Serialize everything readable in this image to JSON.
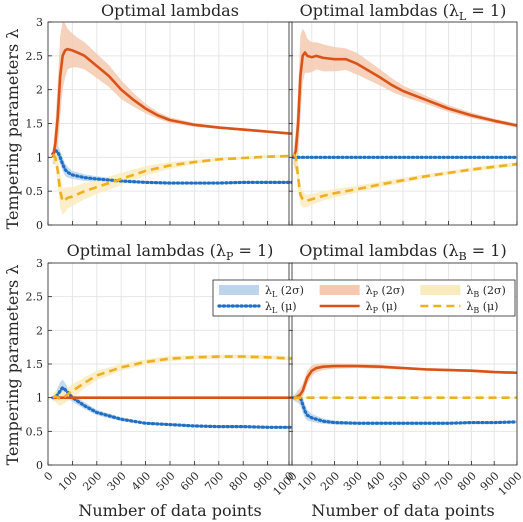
{
  "figure": {
    "xlabel_bottom": "Number of data points",
    "ylabel": "Tempering parameters λ"
  },
  "colors": {
    "L": "#1f6fc4",
    "P": "#d95319",
    "B": "#edb120",
    "L_band": "#bcd5ec",
    "P_band": "#f5c9b0",
    "B_band": "#faebbf",
    "grid": "#e6e6e6",
    "axis": "#262626"
  },
  "legend": {
    "items": [
      {
        "key": "L",
        "kind": "band",
        "label_main": "λ",
        "label_sub": "L",
        "label_rest": " (2σ)"
      },
      {
        "key": "P",
        "kind": "band",
        "label_main": "λ",
        "label_sub": "P",
        "label_rest": " (2σ)"
      },
      {
        "key": "B",
        "kind": "band",
        "label_main": "λ",
        "label_sub": "B",
        "label_rest": " (2σ)"
      },
      {
        "key": "L",
        "kind": "dotted",
        "label_main": "λ",
        "label_sub": "L",
        "label_rest": " (μ)"
      },
      {
        "key": "P",
        "kind": "solid",
        "label_main": "λ",
        "label_sub": "P",
        "label_rest": " (μ)"
      },
      {
        "key": "B",
        "kind": "dashed",
        "label_main": "λ",
        "label_sub": "B",
        "label_rest": " (μ)"
      }
    ]
  },
  "chart_data": [
    {
      "type": "line",
      "title": "Optimal lambdas",
      "xlim": [
        0,
        1000
      ],
      "ylim": [
        0,
        3
      ],
      "xticks": [
        0,
        100,
        200,
        300,
        400,
        500,
        600,
        700,
        800,
        900,
        1000
      ],
      "yticks": [
        0,
        0.5,
        1,
        1.5,
        2,
        2.5,
        3
      ],
      "grid": true,
      "series": [
        {
          "name": "λL (μ)",
          "key": "L",
          "style": "dotted",
          "x": [
            20,
            30,
            40,
            50,
            60,
            70,
            80,
            100,
            150,
            200,
            300,
            400,
            500,
            600,
            700,
            800,
            900,
            1000
          ],
          "y": [
            1.05,
            1.1,
            1.08,
            1.0,
            0.9,
            0.82,
            0.78,
            0.74,
            0.7,
            0.68,
            0.65,
            0.63,
            0.62,
            0.62,
            0.62,
            0.63,
            0.63,
            0.63
          ],
          "band": [
            0.06,
            0.08,
            0.1,
            0.1,
            0.1,
            0.09,
            0.08,
            0.06,
            0.05,
            0.04,
            0.03,
            0.02,
            0.02,
            0.02,
            0.02,
            0.02,
            0.02,
            0.02
          ]
        },
        {
          "name": "λP (μ)",
          "key": "P",
          "style": "solid",
          "x": [
            20,
            30,
            40,
            50,
            60,
            70,
            80,
            100,
            120,
            150,
            200,
            250,
            300,
            350,
            400,
            450,
            500,
            600,
            700,
            800,
            900,
            1000
          ],
          "y": [
            1.0,
            1.2,
            1.6,
            2.2,
            2.5,
            2.58,
            2.6,
            2.58,
            2.55,
            2.5,
            2.35,
            2.2,
            2.0,
            1.85,
            1.72,
            1.62,
            1.55,
            1.48,
            1.44,
            1.41,
            1.38,
            1.35
          ],
          "band": [
            0.1,
            0.3,
            0.5,
            0.6,
            0.5,
            0.4,
            0.3,
            0.25,
            0.22,
            0.2,
            0.18,
            0.16,
            0.14,
            0.1,
            0.07,
            0.05,
            0.04,
            0.03,
            0.02,
            0.02,
            0.02,
            0.02
          ]
        },
        {
          "name": "λB (μ)",
          "key": "B",
          "style": "dashed",
          "x": [
            20,
            30,
            40,
            50,
            60,
            70,
            80,
            100,
            150,
            200,
            300,
            400,
            500,
            600,
            700,
            800,
            900,
            1000
          ],
          "y": [
            1.05,
            1.0,
            0.8,
            0.5,
            0.35,
            0.37,
            0.4,
            0.42,
            0.5,
            0.56,
            0.68,
            0.8,
            0.88,
            0.93,
            0.97,
            0.99,
            1.01,
            1.02
          ],
          "band": [
            0.05,
            0.1,
            0.2,
            0.25,
            0.2,
            0.18,
            0.16,
            0.14,
            0.12,
            0.1,
            0.09,
            0.07,
            0.05,
            0.03,
            0.02,
            0.02,
            0.02,
            0.02
          ]
        }
      ]
    },
    {
      "type": "line",
      "title_main": "Optimal lambdas (λ",
      "title_sub": "L",
      "title_rest": " = 1)",
      "xlim": [
        0,
        1000
      ],
      "ylim": [
        0,
        3
      ],
      "xticks": [
        0,
        100,
        200,
        300,
        400,
        500,
        600,
        700,
        800,
        900,
        1000
      ],
      "yticks": [
        0,
        0.5,
        1,
        1.5,
        2,
        2.5,
        3
      ],
      "grid": true,
      "series": [
        {
          "name": "λL (μ)",
          "key": "L",
          "style": "dotted",
          "x": [
            20,
            1000
          ],
          "y": [
            1.0,
            1.0
          ],
          "band": [
            0,
            0
          ]
        },
        {
          "name": "λP (μ)",
          "key": "P",
          "style": "solid",
          "x": [
            20,
            30,
            40,
            50,
            60,
            70,
            80,
            100,
            120,
            150,
            200,
            250,
            300,
            350,
            400,
            450,
            500,
            600,
            700,
            800,
            900,
            1000
          ],
          "y": [
            1.0,
            1.1,
            1.5,
            2.2,
            2.5,
            2.55,
            2.5,
            2.48,
            2.5,
            2.47,
            2.45,
            2.45,
            2.38,
            2.28,
            2.18,
            2.07,
            1.98,
            1.85,
            1.72,
            1.62,
            1.54,
            1.47
          ],
          "band": [
            0.1,
            0.3,
            0.5,
            0.6,
            0.4,
            0.3,
            0.25,
            0.22,
            0.2,
            0.2,
            0.18,
            0.16,
            0.16,
            0.14,
            0.12,
            0.1,
            0.08,
            0.06,
            0.05,
            0.04,
            0.03,
            0.03
          ]
        },
        {
          "name": "λB (μ)",
          "key": "B",
          "style": "dashed",
          "x": [
            20,
            30,
            40,
            50,
            60,
            70,
            80,
            100,
            150,
            200,
            300,
            400,
            500,
            600,
            700,
            800,
            900,
            1000
          ],
          "y": [
            1.05,
            1.0,
            0.7,
            0.45,
            0.38,
            0.36,
            0.36,
            0.38,
            0.43,
            0.47,
            0.53,
            0.6,
            0.66,
            0.72,
            0.77,
            0.82,
            0.86,
            0.9
          ],
          "band": [
            0.05,
            0.1,
            0.2,
            0.15,
            0.12,
            0.1,
            0.09,
            0.08,
            0.07,
            0.06,
            0.05,
            0.04,
            0.04,
            0.03,
            0.03,
            0.03,
            0.03,
            0.03
          ]
        }
      ]
    },
    {
      "type": "line",
      "title_main": "Optimal lambdas (λ",
      "title_sub": "P",
      "title_rest": " = 1)",
      "xlim": [
        0,
        1000
      ],
      "ylim": [
        0,
        3
      ],
      "xticks": [
        0,
        100,
        200,
        300,
        400,
        500,
        600,
        700,
        800,
        900,
        1000
      ],
      "yticks": [
        0,
        0.5,
        1,
        1.5,
        2,
        2.5,
        3
      ],
      "grid": true,
      "series": [
        {
          "name": "λL (μ)",
          "key": "L",
          "style": "dotted",
          "x": [
            20,
            30,
            40,
            50,
            60,
            70,
            80,
            100,
            150,
            200,
            300,
            400,
            500,
            600,
            700,
            800,
            900,
            1000
          ],
          "y": [
            1.0,
            1.0,
            1.05,
            1.1,
            1.15,
            1.12,
            1.08,
            1.0,
            0.88,
            0.78,
            0.68,
            0.62,
            0.6,
            0.58,
            0.57,
            0.57,
            0.56,
            0.56
          ],
          "band": [
            0.04,
            0.06,
            0.1,
            0.13,
            0.12,
            0.1,
            0.08,
            0.06,
            0.05,
            0.04,
            0.03,
            0.02,
            0.02,
            0.02,
            0.02,
            0.02,
            0.02,
            0.02
          ]
        },
        {
          "name": "λP (μ)",
          "key": "P",
          "style": "solid",
          "x": [
            20,
            1000
          ],
          "y": [
            1.0,
            1.0
          ],
          "band": [
            0,
            0
          ]
        },
        {
          "name": "λB (μ)",
          "key": "B",
          "style": "dashed",
          "x": [
            20,
            30,
            40,
            50,
            60,
            70,
            80,
            100,
            150,
            200,
            300,
            400,
            500,
            600,
            700,
            800,
            900,
            1000
          ],
          "y": [
            1.0,
            1.02,
            1.0,
            0.98,
            1.0,
            1.02,
            1.05,
            1.1,
            1.22,
            1.33,
            1.45,
            1.53,
            1.58,
            1.6,
            1.61,
            1.61,
            1.6,
            1.58
          ],
          "band": [
            0.05,
            0.08,
            0.1,
            0.1,
            0.1,
            0.1,
            0.1,
            0.1,
            0.08,
            0.07,
            0.05,
            0.04,
            0.04,
            0.03,
            0.03,
            0.03,
            0.03,
            0.03
          ]
        }
      ]
    },
    {
      "type": "line",
      "title_main": "Optimal lambdas (λ",
      "title_sub": "B",
      "title_rest": " = 1)",
      "xlim": [
        0,
        1000
      ],
      "ylim": [
        0,
        3
      ],
      "xticks": [
        0,
        100,
        200,
        300,
        400,
        500,
        600,
        700,
        800,
        900,
        1000
      ],
      "yticks": [
        0,
        0.5,
        1,
        1.5,
        2,
        2.5,
        3
      ],
      "grid": true,
      "series": [
        {
          "name": "λL (μ)",
          "key": "L",
          "style": "dotted",
          "x": [
            20,
            30,
            40,
            50,
            60,
            70,
            80,
            100,
            150,
            200,
            300,
            400,
            500,
            600,
            700,
            800,
            900,
            1000
          ],
          "y": [
            1.0,
            1.0,
            1.02,
            1.0,
            0.9,
            0.8,
            0.74,
            0.7,
            0.65,
            0.63,
            0.62,
            0.62,
            0.62,
            0.62,
            0.62,
            0.63,
            0.63,
            0.64
          ],
          "band": [
            0.04,
            0.06,
            0.1,
            0.12,
            0.12,
            0.1,
            0.08,
            0.06,
            0.04,
            0.03,
            0.02,
            0.02,
            0.02,
            0.02,
            0.02,
            0.02,
            0.02,
            0.02
          ]
        },
        {
          "name": "λP (μ)",
          "key": "P",
          "style": "solid",
          "x": [
            20,
            30,
            40,
            50,
            60,
            70,
            80,
            100,
            120,
            150,
            200,
            300,
            400,
            500,
            600,
            700,
            800,
            900,
            1000
          ],
          "y": [
            1.0,
            1.0,
            1.02,
            1.05,
            1.1,
            1.2,
            1.3,
            1.4,
            1.44,
            1.46,
            1.47,
            1.47,
            1.46,
            1.44,
            1.42,
            1.41,
            1.4,
            1.38,
            1.37
          ],
          "band": [
            0.03,
            0.05,
            0.08,
            0.1,
            0.1,
            0.1,
            0.1,
            0.08,
            0.06,
            0.05,
            0.04,
            0.03,
            0.03,
            0.02,
            0.02,
            0.02,
            0.02,
            0.02,
            0.02
          ]
        },
        {
          "name": "λB (μ)",
          "key": "B",
          "style": "dashed",
          "x": [
            20,
            1000
          ],
          "y": [
            1.0,
            1.0
          ],
          "band": [
            0,
            0
          ]
        }
      ]
    }
  ]
}
